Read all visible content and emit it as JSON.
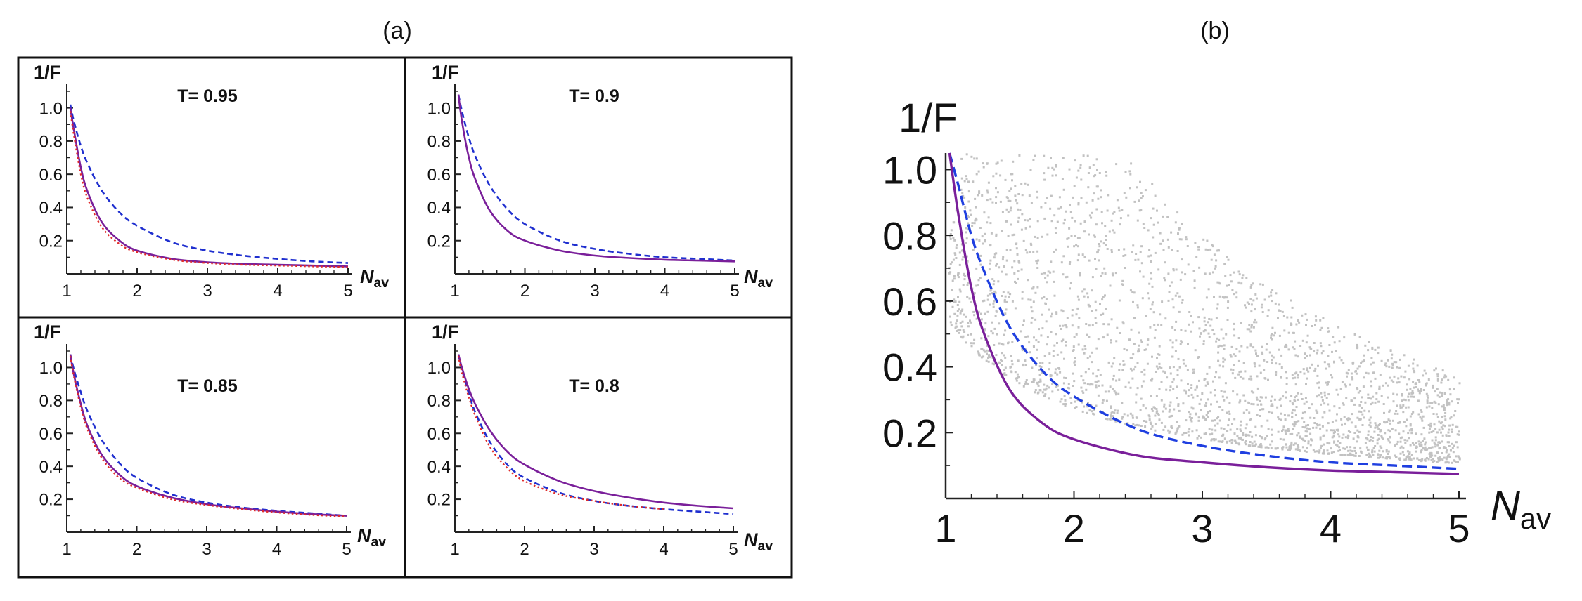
{
  "panel_labels": {
    "a": "(a)",
    "b": "(b)"
  },
  "chart_data": [
    {
      "type": "line",
      "id": "a1",
      "title": "T= 0.95",
      "ylabel": "1/F",
      "xlabel": "N",
      "xlabel_sub": "av",
      "xlim": [
        1,
        5
      ],
      "ylim": [
        0,
        1.1
      ],
      "xticks": [
        "1",
        "2",
        "3",
        "4",
        "5"
      ],
      "yticks": [
        "0.2",
        "0.4",
        "0.6",
        "0.8",
        "1.0"
      ],
      "x": [
        1.05,
        1.1,
        1.2,
        1.3,
        1.5,
        1.75,
        2,
        2.5,
        3,
        3.5,
        4,
        4.5,
        5
      ],
      "series": [
        {
          "name": "dashed",
          "color": "#1f2fcf",
          "style": "dashed",
          "values": [
            1.02,
            0.92,
            0.77,
            0.66,
            0.5,
            0.37,
            0.29,
            0.19,
            0.14,
            0.11,
            0.09,
            0.075,
            0.065
          ]
        },
        {
          "name": "solid",
          "color": "#7a1f9a",
          "style": "solid",
          "values": [
            1.0,
            0.87,
            0.64,
            0.49,
            0.31,
            0.2,
            0.14,
            0.09,
            0.07,
            0.06,
            0.055,
            0.05,
            0.045
          ]
        },
        {
          "name": "dotted",
          "color": "#e02a2a",
          "style": "dotted",
          "values": [
            0.98,
            0.84,
            0.6,
            0.45,
            0.28,
            0.18,
            0.13,
            0.085,
            0.065,
            0.055,
            0.05,
            0.045,
            0.04
          ]
        }
      ]
    },
    {
      "type": "line",
      "id": "a2",
      "title": "T= 0.9",
      "ylabel": "1/F",
      "xlabel": "N",
      "xlabel_sub": "av",
      "xlim": [
        1,
        5
      ],
      "ylim": [
        0,
        1.1
      ],
      "xticks": [
        "1",
        "2",
        "3",
        "4",
        "5"
      ],
      "yticks": [
        "0.2",
        "0.4",
        "0.6",
        "0.8",
        "1.0"
      ],
      "x": [
        1.05,
        1.1,
        1.2,
        1.3,
        1.5,
        1.75,
        2,
        2.5,
        3,
        3.5,
        4,
        4.5,
        5
      ],
      "series": [
        {
          "name": "dashed",
          "color": "#1f2fcf",
          "style": "dashed",
          "values": [
            1.08,
            0.98,
            0.82,
            0.7,
            0.53,
            0.39,
            0.3,
            0.2,
            0.15,
            0.12,
            0.1,
            0.09,
            0.08
          ]
        },
        {
          "name": "solid",
          "color": "#7a1f9a",
          "style": "solid",
          "values": [
            1.08,
            0.92,
            0.7,
            0.56,
            0.38,
            0.26,
            0.2,
            0.14,
            0.11,
            0.095,
            0.085,
            0.08,
            0.075
          ]
        }
      ]
    },
    {
      "type": "line",
      "id": "a3",
      "title": "T= 0.85",
      "ylabel": "1/F",
      "xlabel": "N",
      "xlabel_sub": "av",
      "xlim": [
        1,
        5
      ],
      "ylim": [
        0,
        1.1
      ],
      "xticks": [
        "1",
        "2",
        "3",
        "4",
        "5"
      ],
      "yticks": [
        "0.2",
        "0.4",
        "0.6",
        "0.8",
        "1.0"
      ],
      "x": [
        1.05,
        1.1,
        1.2,
        1.3,
        1.5,
        1.75,
        2,
        2.5,
        3,
        3.5,
        4,
        4.5,
        5
      ],
      "series": [
        {
          "name": "dashed",
          "color": "#1f2fcf",
          "style": "dashed",
          "values": [
            1.08,
            0.99,
            0.85,
            0.73,
            0.56,
            0.42,
            0.33,
            0.23,
            0.18,
            0.15,
            0.13,
            0.115,
            0.1
          ]
        },
        {
          "name": "solid",
          "color": "#7a1f9a",
          "style": "solid",
          "values": [
            1.08,
            0.96,
            0.78,
            0.64,
            0.47,
            0.35,
            0.28,
            0.21,
            0.17,
            0.145,
            0.125,
            0.11,
            0.1
          ]
        },
        {
          "name": "dotted",
          "color": "#e02a2a",
          "style": "dotted",
          "values": [
            1.07,
            0.95,
            0.76,
            0.62,
            0.45,
            0.33,
            0.27,
            0.2,
            0.165,
            0.14,
            0.12,
            0.105,
            0.095
          ]
        }
      ]
    },
    {
      "type": "line",
      "id": "a4",
      "title": "T= 0.8",
      "ylabel": "1/F",
      "xlabel": "N",
      "xlabel_sub": "av",
      "xlim": [
        1,
        5
      ],
      "ylim": [
        0,
        1.1
      ],
      "xticks": [
        "1",
        "2",
        "3",
        "4",
        "5"
      ],
      "yticks": [
        "0.2",
        "0.4",
        "0.6",
        "0.8",
        "1.0"
      ],
      "x": [
        1.05,
        1.1,
        1.2,
        1.3,
        1.5,
        1.75,
        2,
        2.5,
        3,
        3.5,
        4,
        4.5,
        5
      ],
      "series": [
        {
          "name": "dashed",
          "color": "#1f2fcf",
          "style": "dashed",
          "values": [
            1.08,
            0.99,
            0.84,
            0.72,
            0.55,
            0.41,
            0.33,
            0.24,
            0.19,
            0.16,
            0.14,
            0.125,
            0.11
          ]
        },
        {
          "name": "solid",
          "color": "#7a1f9a",
          "style": "solid",
          "values": [
            1.08,
            1.0,
            0.87,
            0.77,
            0.62,
            0.49,
            0.41,
            0.31,
            0.25,
            0.21,
            0.18,
            0.16,
            0.145
          ]
        },
        {
          "name": "dotted",
          "color": "#e02a2a",
          "style": "dotted",
          "values": [
            1.07,
            0.97,
            0.82,
            0.7,
            0.52,
            0.39,
            0.31,
            0.23,
            0.19,
            0.16,
            0.14,
            null,
            null
          ]
        }
      ]
    },
    {
      "type": "scatter",
      "id": "b",
      "ylabel": "1/F",
      "xlabel": "N",
      "xlabel_sub": "av",
      "xlim": [
        1,
        5
      ],
      "ylim": [
        0,
        1.05
      ],
      "xticks": [
        "1",
        "2",
        "3",
        "4",
        "5"
      ],
      "yticks": [
        "0.2",
        "0.4",
        "0.6",
        "0.8",
        "1.0"
      ],
      "scatter_color": "#c2c2c2",
      "x": [
        1.03,
        1.1,
        1.2,
        1.3,
        1.5,
        1.75,
        2,
        2.5,
        3,
        3.5,
        4,
        4.5,
        5
      ],
      "series": [
        {
          "name": "dashed",
          "color": "#1f3fe0",
          "style": "dashed",
          "values": [
            1.05,
            0.95,
            0.8,
            0.69,
            0.52,
            0.39,
            0.31,
            0.21,
            0.16,
            0.13,
            0.11,
            0.1,
            0.09
          ]
        },
        {
          "name": "solid",
          "color": "#7a1f9a",
          "style": "solid",
          "values": [
            1.05,
            0.86,
            0.64,
            0.5,
            0.33,
            0.23,
            0.18,
            0.13,
            0.11,
            0.095,
            0.085,
            0.08,
            0.075
          ]
        }
      ]
    }
  ]
}
